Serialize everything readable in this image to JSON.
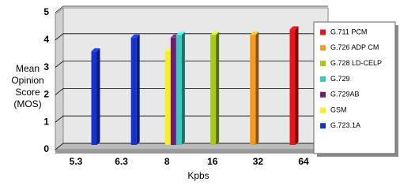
{
  "chart_data": {
    "type": "bar3d",
    "ylabel": [
      "Mean",
      "Opinion",
      "Score",
      "(MOS)"
    ],
    "xlabel": "Kpbs",
    "categories": [
      "5.3",
      "6.3",
      "8",
      "16",
      "32",
      "64"
    ],
    "ylim": [
      0,
      5
    ],
    "yticks": [
      0,
      1,
      2,
      3,
      4,
      5
    ],
    "grid": true,
    "legend": "right",
    "series": [
      {
        "name": "G.711 PCM",
        "color": "#e8141a",
        "values": [
          null,
          null,
          null,
          null,
          null,
          4.3
        ]
      },
      {
        "name": "G.726 ADP CM",
        "color": "#f59a1e",
        "values": [
          null,
          null,
          null,
          null,
          4.1,
          null
        ]
      },
      {
        "name": "G.728 LD-CELP",
        "color": "#a8c81e",
        "values": [
          null,
          null,
          null,
          4.1,
          null,
          null
        ]
      },
      {
        "name": "G.729",
        "color": "#3cc8c0",
        "values": [
          null,
          null,
          4.1,
          null,
          null,
          null
        ]
      },
      {
        "name": "G.729AB",
        "color": "#701e70",
        "values": [
          null,
          null,
          4.0,
          null,
          null,
          null
        ]
      },
      {
        "name": "GSM",
        "color": "#f5f01e",
        "values": [
          null,
          null,
          3.5,
          null,
          null,
          null
        ]
      },
      {
        "name": "G.723.1A",
        "color": "#1432d2",
        "values": [
          3.5,
          4.0,
          null,
          null,
          null,
          null
        ]
      }
    ]
  }
}
